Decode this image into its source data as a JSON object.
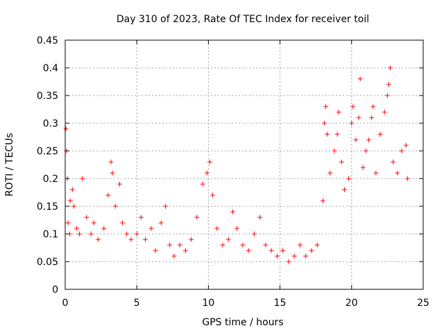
{
  "chart_data": {
    "type": "scatter",
    "title": "Day 310 of 2023, Rate Of TEC Index for receiver toil",
    "xlabel": "GPS time / hours",
    "ylabel": "ROTI / TECUs",
    "xlim": [
      0,
      25
    ],
    "ylim": [
      0,
      0.45
    ],
    "xticks": [
      0,
      5,
      10,
      15,
      20,
      25
    ],
    "yticks": [
      0,
      0.05,
      0.1,
      0.15,
      0.2,
      0.25,
      0.3,
      0.35,
      0.4,
      0.45
    ],
    "xtick_labels": [
      "0",
      "5",
      "10",
      "15",
      "20",
      "25"
    ],
    "ytick_labels": [
      "0",
      "0.05",
      "0.1",
      "0.15",
      "0.2",
      "0.25",
      "0.3",
      "0.35",
      "0.4",
      "0.45"
    ],
    "grid": true,
    "marker": "+",
    "color": "#ff0000",
    "series": [
      {
        "points": [
          [
            0.05,
            0.29
          ],
          [
            0.1,
            0.25
          ],
          [
            0.15,
            0.2
          ],
          [
            0.2,
            0.12
          ],
          [
            0.3,
            0.1
          ],
          [
            0.35,
            0.16
          ],
          [
            0.5,
            0.18
          ],
          [
            0.6,
            0.15
          ],
          [
            0.8,
            0.11
          ],
          [
            1.0,
            0.1
          ],
          [
            1.2,
            0.2
          ],
          [
            1.5,
            0.13
          ],
          [
            1.8,
            0.1
          ],
          [
            2.0,
            0.12
          ],
          [
            2.3,
            0.09
          ],
          [
            2.7,
            0.11
          ],
          [
            3.0,
            0.17
          ],
          [
            3.2,
            0.23
          ],
          [
            3.3,
            0.21
          ],
          [
            3.5,
            0.15
          ],
          [
            3.8,
            0.19
          ],
          [
            4.0,
            0.12
          ],
          [
            4.3,
            0.1
          ],
          [
            4.6,
            0.09
          ],
          [
            5.0,
            0.1
          ],
          [
            5.3,
            0.13
          ],
          [
            5.6,
            0.09
          ],
          [
            6.0,
            0.11
          ],
          [
            6.3,
            0.07
          ],
          [
            6.7,
            0.12
          ],
          [
            7.0,
            0.15
          ],
          [
            7.3,
            0.08
          ],
          [
            7.6,
            0.06
          ],
          [
            8.0,
            0.08
          ],
          [
            8.4,
            0.07
          ],
          [
            8.8,
            0.09
          ],
          [
            9.2,
            0.13
          ],
          [
            9.6,
            0.19
          ],
          [
            9.9,
            0.21
          ],
          [
            10.1,
            0.23
          ],
          [
            10.3,
            0.17
          ],
          [
            10.6,
            0.11
          ],
          [
            11.0,
            0.08
          ],
          [
            11.4,
            0.09
          ],
          [
            11.7,
            0.14
          ],
          [
            12.0,
            0.11
          ],
          [
            12.4,
            0.08
          ],
          [
            12.8,
            0.07
          ],
          [
            13.2,
            0.1
          ],
          [
            13.6,
            0.13
          ],
          [
            14.0,
            0.08
          ],
          [
            14.4,
            0.07
          ],
          [
            14.8,
            0.06
          ],
          [
            15.2,
            0.07
          ],
          [
            15.6,
            0.05
          ],
          [
            16.0,
            0.06
          ],
          [
            16.4,
            0.08
          ],
          [
            16.8,
            0.06
          ],
          [
            17.2,
            0.07
          ],
          [
            17.6,
            0.08
          ],
          [
            18.0,
            0.16
          ],
          [
            18.1,
            0.3
          ],
          [
            18.2,
            0.33
          ],
          [
            18.3,
            0.28
          ],
          [
            18.5,
            0.21
          ],
          [
            18.8,
            0.25
          ],
          [
            19.0,
            0.28
          ],
          [
            19.1,
            0.32
          ],
          [
            19.3,
            0.23
          ],
          [
            19.5,
            0.18
          ],
          [
            19.8,
            0.2
          ],
          [
            20.0,
            0.3
          ],
          [
            20.1,
            0.33
          ],
          [
            20.3,
            0.27
          ],
          [
            20.5,
            0.31
          ],
          [
            20.6,
            0.38
          ],
          [
            20.8,
            0.22
          ],
          [
            21.0,
            0.25
          ],
          [
            21.2,
            0.27
          ],
          [
            21.4,
            0.31
          ],
          [
            21.5,
            0.33
          ],
          [
            21.7,
            0.21
          ],
          [
            22.0,
            0.28
          ],
          [
            22.3,
            0.32
          ],
          [
            22.5,
            0.35
          ],
          [
            22.6,
            0.37
          ],
          [
            22.7,
            0.4
          ],
          [
            22.9,
            0.23
          ],
          [
            23.2,
            0.21
          ],
          [
            23.5,
            0.25
          ],
          [
            23.8,
            0.26
          ],
          [
            23.9,
            0.2
          ]
        ]
      }
    ]
  }
}
